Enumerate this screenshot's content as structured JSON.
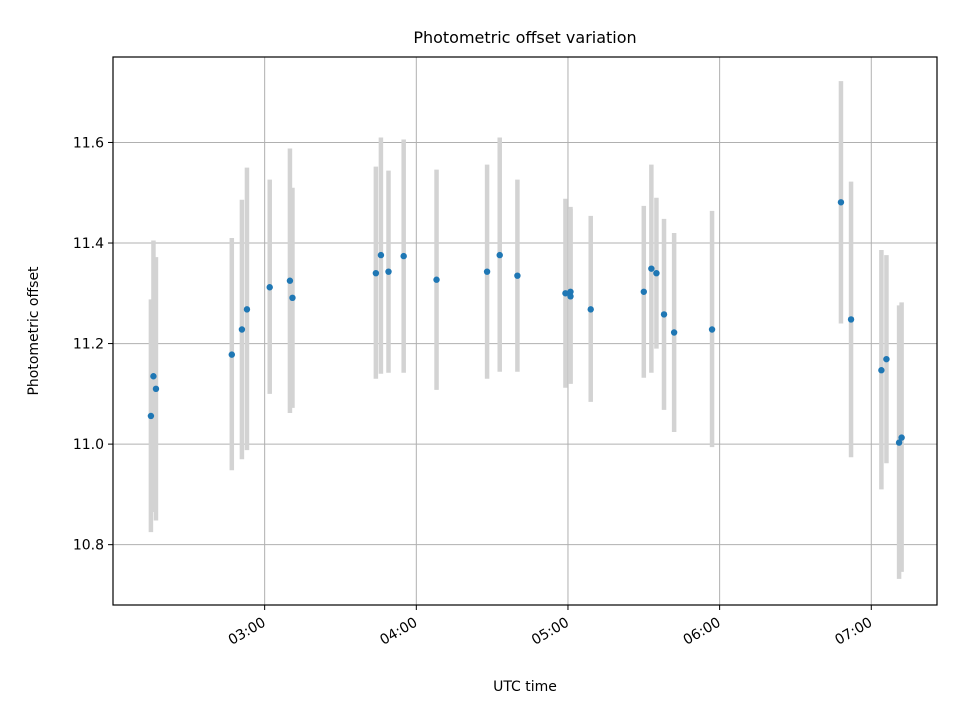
{
  "chart_data": {
    "type": "scatter",
    "title": "Photometric offset variation",
    "xlabel": "UTC time",
    "ylabel": "Photometric offset",
    "x_axis_type": "time",
    "xlim": [
      "02:00",
      "07:26"
    ],
    "ylim": [
      10.68,
      11.77
    ],
    "x_ticks": [
      "03:00",
      "04:00",
      "05:00",
      "06:00",
      "07:00"
    ],
    "y_ticks": [
      "10.8",
      "11.0",
      "11.2",
      "11.4",
      "11.6"
    ],
    "grid": true,
    "marker_color": "#1f77b4",
    "errorbar_color": "#d3d3d3",
    "points": [
      {
        "t": "02:15",
        "y": 11.056,
        "lo": 10.825,
        "hi": 11.288
      },
      {
        "t": "02:16",
        "y": 11.135,
        "lo": 10.865,
        "hi": 11.405
      },
      {
        "t": "02:17",
        "y": 11.11,
        "lo": 10.848,
        "hi": 11.372
      },
      {
        "t": "02:47",
        "y": 11.178,
        "lo": 10.948,
        "hi": 11.41
      },
      {
        "t": "02:51",
        "y": 11.228,
        "lo": 10.97,
        "hi": 11.486
      },
      {
        "t": "02:53",
        "y": 11.268,
        "lo": 10.988,
        "hi": 11.55
      },
      {
        "t": "03:02",
        "y": 11.312,
        "lo": 11.1,
        "hi": 11.526
      },
      {
        "t": "03:10",
        "y": 11.325,
        "lo": 11.062,
        "hi": 11.588
      },
      {
        "t": "03:11",
        "y": 11.291,
        "lo": 11.072,
        "hi": 11.51
      },
      {
        "t": "03:44",
        "y": 11.34,
        "lo": 11.13,
        "hi": 11.552
      },
      {
        "t": "03:46",
        "y": 11.376,
        "lo": 11.14,
        "hi": 11.61
      },
      {
        "t": "03:49",
        "y": 11.343,
        "lo": 11.142,
        "hi": 11.544
      },
      {
        "t": "03:55",
        "y": 11.374,
        "lo": 11.142,
        "hi": 11.606
      },
      {
        "t": "04:08",
        "y": 11.327,
        "lo": 11.108,
        "hi": 11.546
      },
      {
        "t": "04:28",
        "y": 11.343,
        "lo": 11.13,
        "hi": 11.556
      },
      {
        "t": "04:33",
        "y": 11.376,
        "lo": 11.144,
        "hi": 11.61
      },
      {
        "t": "04:40",
        "y": 11.335,
        "lo": 11.144,
        "hi": 11.526
      },
      {
        "t": "04:59",
        "y": 11.3,
        "lo": 11.112,
        "hi": 11.488
      },
      {
        "t": "05:01",
        "y": 11.303,
        "lo": 11.12,
        "hi": 11.472
      },
      {
        "t": "05:01",
        "y": 11.294,
        "lo": 11.12,
        "hi": 11.468
      },
      {
        "t": "05:09",
        "y": 11.268,
        "lo": 11.084,
        "hi": 11.454
      },
      {
        "t": "05:30",
        "y": 11.303,
        "lo": 11.132,
        "hi": 11.474
      },
      {
        "t": "05:33",
        "y": 11.349,
        "lo": 11.142,
        "hi": 11.556
      },
      {
        "t": "05:35",
        "y": 11.34,
        "lo": 11.19,
        "hi": 11.49
      },
      {
        "t": "05:38",
        "y": 11.258,
        "lo": 11.068,
        "hi": 11.448
      },
      {
        "t": "05:42",
        "y": 11.222,
        "lo": 11.024,
        "hi": 11.42
      },
      {
        "t": "05:57",
        "y": 11.228,
        "lo": 10.994,
        "hi": 11.464
      },
      {
        "t": "06:48",
        "y": 11.481,
        "lo": 11.24,
        "hi": 11.722
      },
      {
        "t": "06:52",
        "y": 11.248,
        "lo": 10.974,
        "hi": 11.522
      },
      {
        "t": "07:04",
        "y": 11.147,
        "lo": 10.91,
        "hi": 11.386
      },
      {
        "t": "07:06",
        "y": 11.169,
        "lo": 10.962,
        "hi": 11.376
      },
      {
        "t": "07:11",
        "y": 11.003,
        "lo": 10.732,
        "hi": 11.276
      },
      {
        "t": "07:12",
        "y": 11.013,
        "lo": 10.746,
        "hi": 11.282
      }
    ]
  }
}
